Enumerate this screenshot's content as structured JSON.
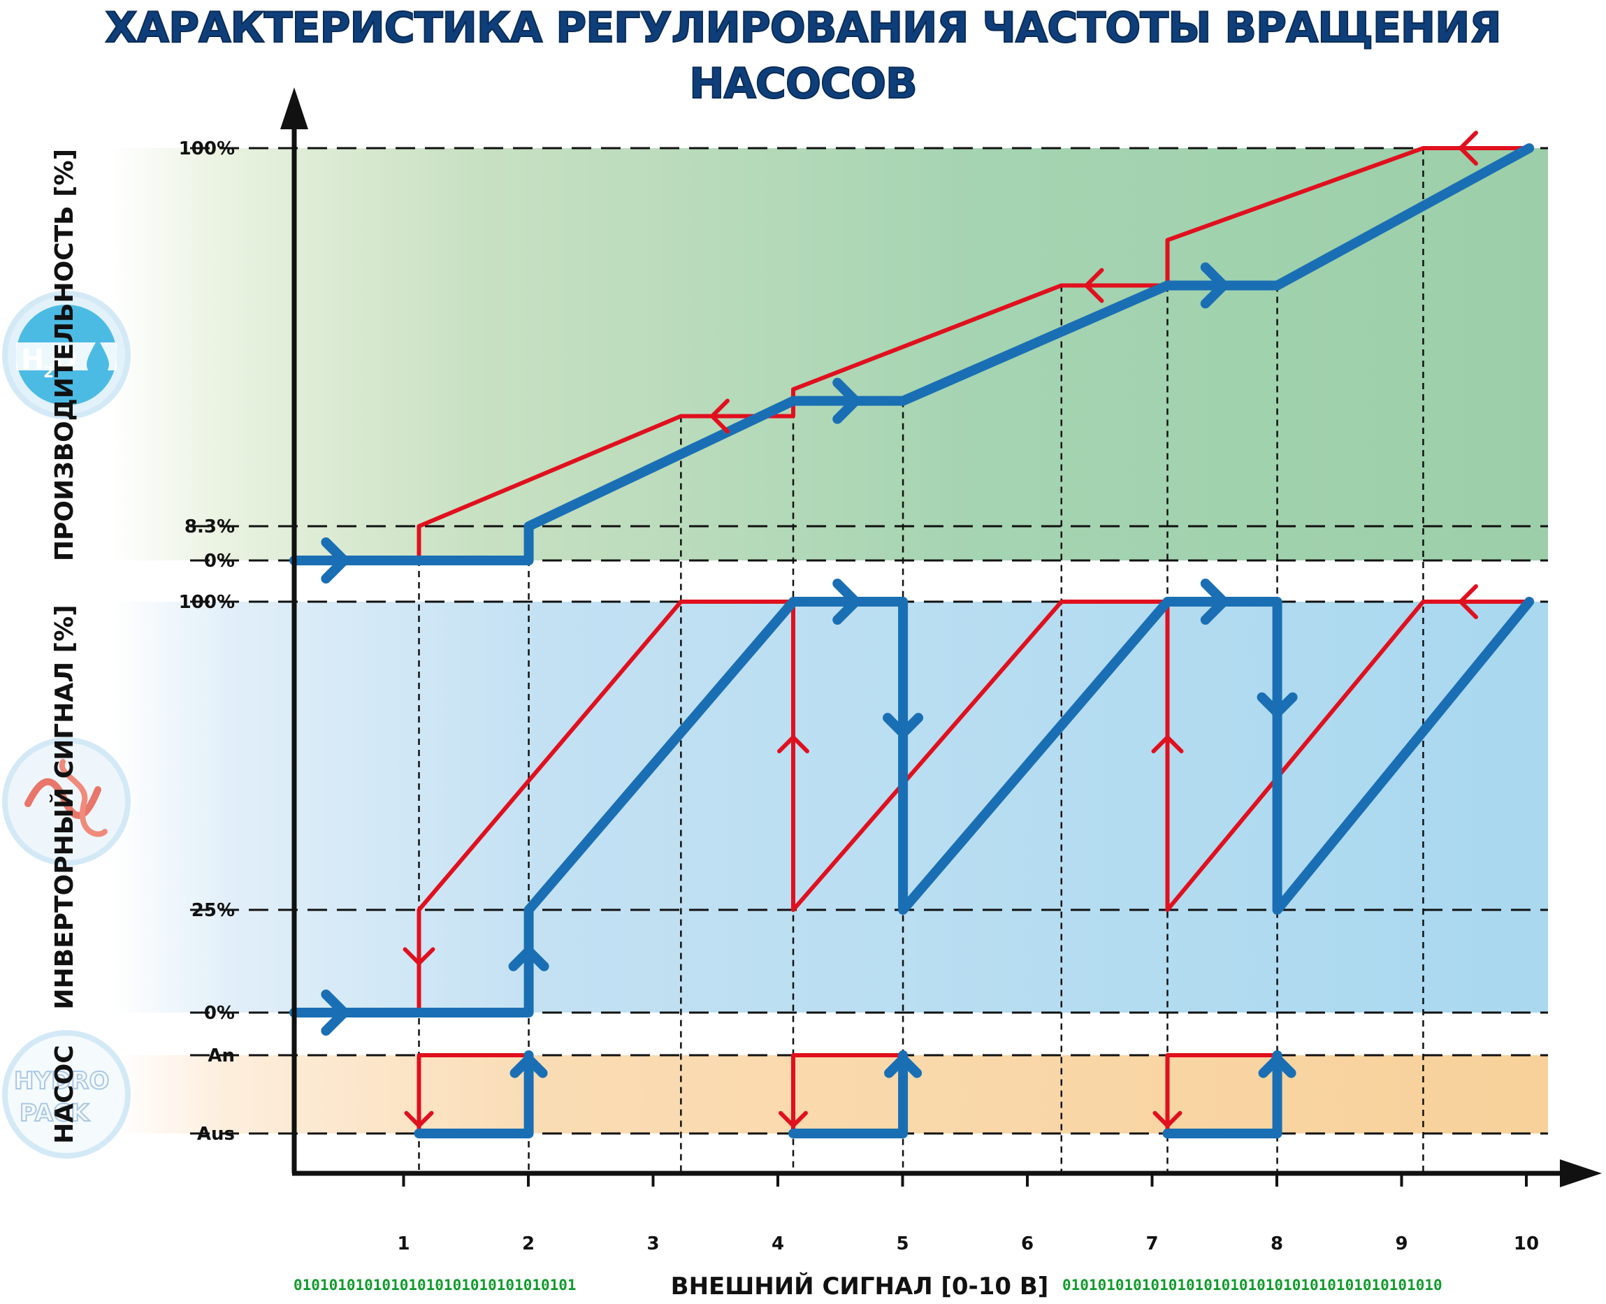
{
  "title": "ХАРАКТЕРИСТИКА РЕГУЛИРОВАНИЯ ЧАСТОТЫ ВРАЩЕНИЯ НАСОСОВ",
  "x_axis": {
    "label": "ВНЕШНИЙ СИГНАЛ [0-10 В]",
    "bits_left": "01010101010101010101010101010101",
    "bits_right": "0101010101010101010101010101010101010101010",
    "ticks": [
      "1",
      "2",
      "3",
      "4",
      "5",
      "6",
      "7",
      "8",
      "9",
      "10"
    ]
  },
  "colors": {
    "increasing": "#1a6fb4",
    "decreasing": "#e0101e",
    "panel_performance": "#9dd1ae",
    "panel_inverter": "#a9d8ef",
    "panel_pump": "#f8d19a"
  },
  "icons": {
    "water": "water-drop-icon",
    "signal": "sine-wave-icon",
    "logo": "hydropack-logo"
  },
  "chart_data": [
    {
      "type": "line",
      "ylabel": "ПРОИЗВОДИТЕЛЬНОСТЬ [%]",
      "y_ticks": [
        "0%",
        "8.3%",
        "100%"
      ],
      "x_grid": [
        1.0,
        1.88,
        3.1,
        4.0,
        4.88,
        6.15,
        7.0,
        7.88,
        9.05
      ],
      "series": [
        {
          "color": "#1a6fb4",
          "x": [
            0,
            1.88,
            1.88,
            4.0,
            4.88,
            7.0,
            7.88,
            9.9
          ],
          "y": [
            0,
            0,
            8.3,
            38.7,
            38.7,
            66.7,
            66.7,
            100
          ]
        },
        {
          "color": "#e0101e",
          "x": [
            1.0,
            1.0,
            3.1,
            4.0,
            4.0,
            6.15,
            7.0,
            7.0,
            9.05,
            9.9
          ],
          "y": [
            0,
            8.3,
            35,
            35,
            41.5,
            66.7,
            66.7,
            77.7,
            100,
            100
          ]
        }
      ]
    },
    {
      "type": "line",
      "ylabel": "ИНВЕРТОРНЫЙ СИГНАЛ [%]",
      "y_ticks": [
        "0%",
        "25%",
        "100%"
      ],
      "series": [
        {
          "color": "#1a6fb4",
          "x": [
            0,
            1.88,
            1.88,
            4.0,
            4.88,
            4.88,
            7.0,
            7.88,
            7.88,
            9.9
          ],
          "y": [
            0,
            0,
            25,
            100,
            100,
            25,
            100,
            100,
            25,
            100
          ]
        },
        {
          "color": "#e0101e",
          "x": [
            1.0,
            1.0,
            3.1,
            4.0,
            4.0,
            6.15,
            7.0,
            7.0,
            9.05,
            9.9
          ],
          "y": [
            0,
            25,
            100,
            100,
            25,
            100,
            100,
            25,
            100,
            100
          ]
        }
      ]
    },
    {
      "type": "line",
      "ylabel": "НАСОС",
      "y_ticks": [
        "Aus",
        "An"
      ],
      "series": [
        {
          "color": "#1a6fb4",
          "segments": [
            [
              1.0,
              1.88
            ],
            [
              4.0,
              4.88
            ],
            [
              7.0,
              7.88
            ]
          ]
        },
        {
          "color": "#e0101e",
          "segments": [
            [
              1.0,
              1.88
            ],
            [
              4.0,
              4.88
            ],
            [
              7.0,
              7.88
            ]
          ]
        }
      ]
    }
  ]
}
